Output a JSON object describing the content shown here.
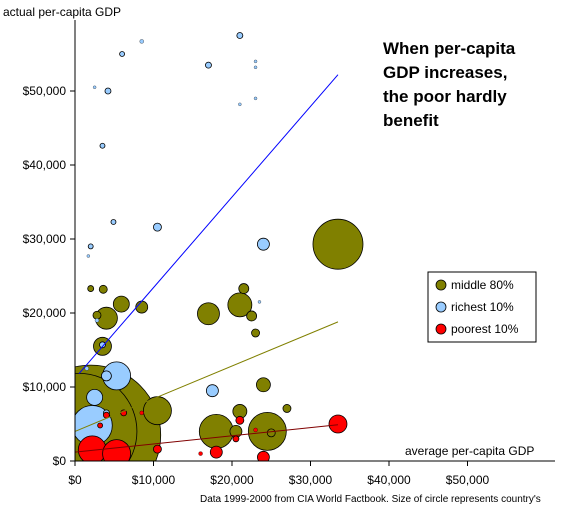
{
  "chart_data": {
    "type": "scatter",
    "title_lines": [
      "When per-capita",
      "GDP increases,",
      "the poor hardly",
      "benefit"
    ],
    "xlabel": "average per-capita GDP",
    "ylabel": "actual per-capita GDP",
    "note": "Data 1999-2000 from CIA World Factbook. Size of circle represents country's",
    "xlim": [
      0,
      60000
    ],
    "ylim": [
      0,
      59000
    ],
    "x_ticks": [
      0,
      10000,
      20000,
      30000,
      40000,
      50000
    ],
    "x_tick_labels": [
      "$0",
      "$10,000",
      "$20,000",
      "$30,000",
      "$40,000",
      "$50,000"
    ],
    "y_ticks": [
      0,
      10000,
      20000,
      30000,
      40000,
      50000
    ],
    "y_tick_labels": [
      "$0",
      "$10,000",
      "$20,000",
      "$30,000",
      "$40,000",
      "$50,000"
    ],
    "legend_position": "right",
    "series": [
      {
        "name": "middle 80%",
        "color": "#808000",
        "trendline": {
          "color": "#808000",
          "from": [
            0,
            4000
          ],
          "to": [
            33500,
            18800
          ]
        },
        "points": [
          {
            "x": 2000,
            "y": 3500,
            "r": 70
          },
          {
            "x": 500,
            "y": 4000,
            "r": 58
          },
          {
            "x": 10500,
            "y": 6800,
            "r": 14
          },
          {
            "x": 4000,
            "y": 19300,
            "r": 11
          },
          {
            "x": 5900,
            "y": 21200,
            "r": 8
          },
          {
            "x": 8500,
            "y": 20800,
            "r": 6
          },
          {
            "x": 3500,
            "y": 15500,
            "r": 9
          },
          {
            "x": 3600,
            "y": 23200,
            "r": 4
          },
          {
            "x": 2000,
            "y": 23300,
            "r": 3
          },
          {
            "x": 2800,
            "y": 19700,
            "r": 4
          },
          {
            "x": 17000,
            "y": 19900,
            "r": 11
          },
          {
            "x": 21000,
            "y": 21100,
            "r": 12
          },
          {
            "x": 21500,
            "y": 23300,
            "r": 5
          },
          {
            "x": 22500,
            "y": 19600,
            "r": 5
          },
          {
            "x": 23000,
            "y": 17300,
            "r": 4
          },
          {
            "x": 33500,
            "y": 29300,
            "r": 25
          },
          {
            "x": 18000,
            "y": 4000,
            "r": 17
          },
          {
            "x": 24500,
            "y": 4000,
            "r": 19
          },
          {
            "x": 20500,
            "y": 4000,
            "r": 6
          },
          {
            "x": 21000,
            "y": 6700,
            "r": 7
          },
          {
            "x": 24000,
            "y": 10300,
            "r": 7
          },
          {
            "x": 27000,
            "y": 7100,
            "r": 4
          },
          {
            "x": 25000,
            "y": 3800,
            "r": 4
          }
        ]
      },
      {
        "name": "richest 10%",
        "color": "#99ccff",
        "trendline": {
          "color": "#0000ff",
          "from": [
            500,
            11800
          ],
          "to": [
            33500,
            52200
          ]
        },
        "points": [
          {
            "x": 5300,
            "y": 11500,
            "r": 14
          },
          {
            "x": 2200,
            "y": 4800,
            "r": 20
          },
          {
            "x": 2500,
            "y": 8600,
            "r": 8
          },
          {
            "x": 4000,
            "y": 11500,
            "r": 5
          },
          {
            "x": 10500,
            "y": 31600,
            "r": 4
          },
          {
            "x": 24000,
            "y": 29300,
            "r": 6
          },
          {
            "x": 17500,
            "y": 9500,
            "r": 6
          },
          {
            "x": 21000,
            "y": 57500,
            "r": 3
          },
          {
            "x": 17000,
            "y": 53500,
            "r": 3
          },
          {
            "x": 6000,
            "y": 55000,
            "r": 2.5
          },
          {
            "x": 8500,
            "y": 56700,
            "r": 2
          },
          {
            "x": 2500,
            "y": 50500,
            "r": 1.5
          },
          {
            "x": 4200,
            "y": 50000,
            "r": 3
          },
          {
            "x": 3500,
            "y": 42600,
            "r": 2.5
          },
          {
            "x": 4900,
            "y": 32300,
            "r": 2.5
          },
          {
            "x": 2000,
            "y": 29000,
            "r": 2.5
          },
          {
            "x": 1700,
            "y": 27700,
            "r": 1.5
          },
          {
            "x": 23000,
            "y": 54000,
            "r": 1.5
          },
          {
            "x": 23000,
            "y": 53200,
            "r": 1.5
          },
          {
            "x": 3500,
            "y": 15700,
            "r": 3
          },
          {
            "x": 2800,
            "y": 19000,
            "r": 2
          },
          {
            "x": 4000,
            "y": 6500,
            "r": 3
          },
          {
            "x": 1500,
            "y": 12500,
            "r": 2
          },
          {
            "x": 23500,
            "y": 21500,
            "r": 1.5
          },
          {
            "x": 23000,
            "y": 49000,
            "r": 1.5
          },
          {
            "x": 21000,
            "y": 48200,
            "r": 1.5
          }
        ]
      },
      {
        "name": "poorest 10%",
        "color": "#ff0000",
        "trendline": {
          "color": "#800000",
          "from": [
            0,
            1200
          ],
          "to": [
            33500,
            4900
          ]
        },
        "points": [
          {
            "x": 2200,
            "y": 1500,
            "r": 14
          },
          {
            "x": 5300,
            "y": 1000,
            "r": 14
          },
          {
            "x": 33500,
            "y": 5000,
            "r": 9
          },
          {
            "x": 18000,
            "y": 1200,
            "r": 6
          },
          {
            "x": 24000,
            "y": 500,
            "r": 6
          },
          {
            "x": 10500,
            "y": 1600,
            "r": 4
          },
          {
            "x": 21000,
            "y": 5500,
            "r": 4
          },
          {
            "x": 4000,
            "y": 6200,
            "r": 3
          },
          {
            "x": 6200,
            "y": 6500,
            "r": 3
          },
          {
            "x": 3200,
            "y": 4800,
            "r": 2.5
          },
          {
            "x": 8500,
            "y": 6500,
            "r": 2
          },
          {
            "x": 20500,
            "y": 3000,
            "r": 3
          },
          {
            "x": 23000,
            "y": 4200,
            "r": 2
          },
          {
            "x": 16000,
            "y": 1000,
            "r": 2
          }
        ]
      }
    ]
  }
}
